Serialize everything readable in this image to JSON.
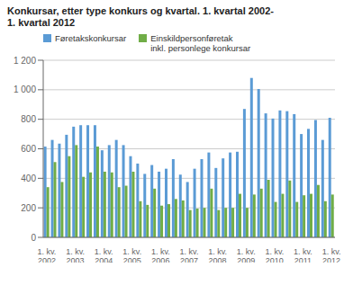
{
  "chart_data": {
    "type": "bar",
    "title": "Konkursar, etter type konkurs og kvartal. 1. kvartal 2002-\n1. kvartal 2012",
    "categories": [
      "1. kv.\n2002",
      null,
      null,
      null,
      "1. kv.\n2003",
      null,
      null,
      null,
      "1. kv.\n2004",
      null,
      null,
      null,
      "1. kv.\n2005",
      null,
      null,
      null,
      "1. kv.\n2006",
      null,
      null,
      null,
      "1. kv.\n2007",
      null,
      null,
      null,
      "1. kv.\n2008",
      null,
      null,
      null,
      "1. kv.\n2009",
      null,
      null,
      null,
      "1. kv.\n2010",
      null,
      null,
      null,
      "1. kv.\n2011",
      null,
      null,
      null,
      "1. kv.\n2012"
    ],
    "series": [
      {
        "name": "Føretakskonkursar",
        "color": "#5b9bd5",
        "values": [
          615,
          660,
          635,
          695,
          750,
          760,
          760,
          760,
          590,
          625,
          660,
          625,
          550,
          500,
          430,
          490,
          445,
          465,
          530,
          425,
          375,
          465,
          530,
          575,
          470,
          535,
          575,
          580,
          870,
          1080,
          1005,
          840,
          805,
          860,
          855,
          835,
          700,
          735,
          795,
          660,
          810
        ]
      },
      {
        "name": "Einskildpersonføretak\ninkl. personlege konkursar",
        "color": "#70ad47",
        "values": [
          340,
          510,
          375,
          550,
          625,
          410,
          440,
          615,
          445,
          440,
          340,
          350,
          445,
          245,
          220,
          330,
          215,
          225,
          260,
          250,
          185,
          195,
          200,
          330,
          185,
          200,
          200,
          295,
          200,
          290,
          330,
          390,
          240,
          295,
          385,
          240,
          285,
          295,
          355,
          245,
          290
        ]
      }
    ],
    "ylim": [
      0,
      1200
    ],
    "yticks": [
      0,
      200,
      400,
      600,
      800,
      {
        "value": 1000,
        "label": "1 000"
      },
      {
        "value": 1200,
        "label": "1 200"
      }
    ],
    "grid": true,
    "legend": "upper left"
  }
}
